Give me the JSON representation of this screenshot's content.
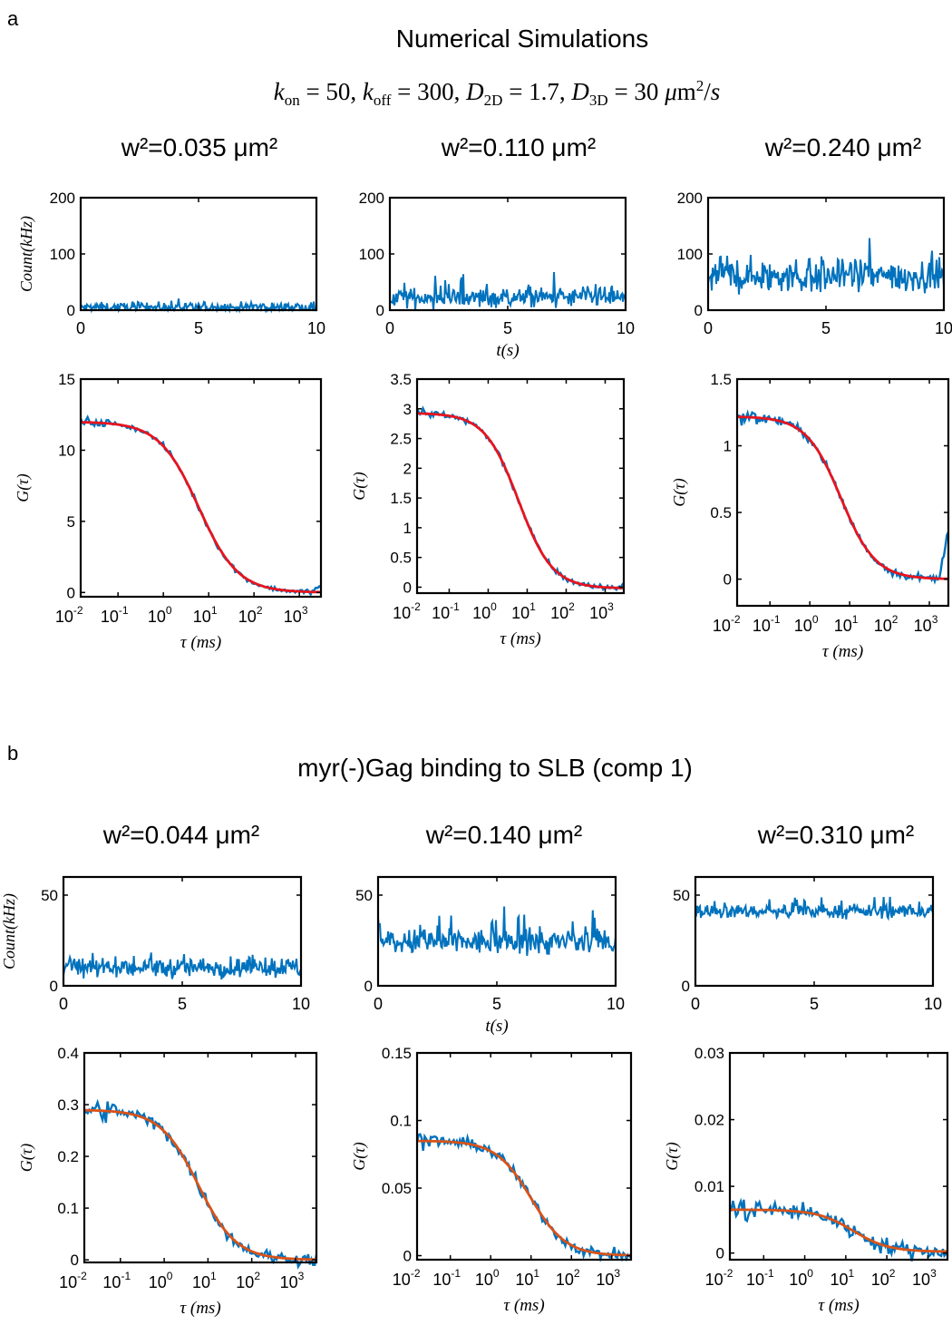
{
  "panel_a": {
    "letter": "a",
    "title": "Numerical Simulations",
    "params_text": "k_on = 50, k_off = 300, D_2D = 1.7, D_3D = 30 μm²/s",
    "w_labels": [
      "w²=0.035 μm²",
      "w²=0.110 μm²",
      "w²=0.240 μm²"
    ]
  },
  "panel_b": {
    "letter": "b",
    "title": "myr(-)Gag binding to SLB (comp 1)",
    "w_labels": [
      "w²=0.044 μm²",
      "w²=0.140 μm²",
      "w²=0.310 μm²"
    ]
  },
  "axis_labels": {
    "count_y": "Count(kHz)",
    "time_x": "t(s)",
    "g_y": "G(τ)",
    "tau_x": "τ (ms)"
  },
  "colors": {
    "data": "#0072BD",
    "fit_a": "#E8141E",
    "fit_b": "#D95319",
    "axis": "#000000"
  },
  "chart_data": [
    {
      "id": "a-count-1",
      "type": "line",
      "xlim": [
        0,
        10
      ],
      "ylim": [
        0,
        200
      ],
      "xticks": [
        0,
        5,
        10
      ],
      "yticks": [
        0,
        100,
        200
      ],
      "xlabel": "",
      "ylabel": "Count(kHz)",
      "mean": 5,
      "noise": 6,
      "spikes": 8
    },
    {
      "id": "a-count-2",
      "type": "line",
      "xlim": [
        0,
        10
      ],
      "ylim": [
        0,
        200
      ],
      "xticks": [
        0,
        5,
        10
      ],
      "yticks": [
        0,
        100,
        200
      ],
      "xlabel": "t(s)",
      "ylabel": "",
      "mean": 22,
      "noise": 12,
      "spikes": 30
    },
    {
      "id": "a-count-3",
      "type": "line",
      "xlim": [
        0,
        10
      ],
      "ylim": [
        0,
        200
      ],
      "xticks": [
        0,
        5,
        10
      ],
      "yticks": [
        0,
        100,
        200
      ],
      "xlabel": "",
      "ylabel": "",
      "mean": 60,
      "noise": 22,
      "spikes": 70
    },
    {
      "id": "a-g-1",
      "type": "line",
      "xscale": "log",
      "xlim": [
        0.015,
        3000
      ],
      "ylim": [
        -0.3,
        15
      ],
      "xticks": [
        0.01,
        0.1,
        1,
        10,
        100,
        1000
      ],
      "xticklabels": [
        "-2",
        "-1",
        "0",
        "1",
        "2",
        "3"
      ],
      "yticks": [
        0,
        5,
        10,
        15
      ],
      "xlabel": "τ (ms)",
      "ylabel": "G(τ)",
      "fit": {
        "G0": 12,
        "tau_d": 6,
        "offset": 0
      },
      "noise": 0.18,
      "tail_up": 0.4
    },
    {
      "id": "a-g-2",
      "type": "line",
      "xscale": "log",
      "xlim": [
        0.015,
        3000
      ],
      "ylim": [
        -0.1,
        3.5
      ],
      "xticks": [
        0.01,
        0.1,
        1,
        10,
        100,
        1000
      ],
      "xticklabels": [
        "-2",
        "-1",
        "0",
        "1",
        "2",
        "3"
      ],
      "yticks": [
        0,
        0.5,
        1,
        1.5,
        2,
        2.5,
        3,
        3.5
      ],
      "xlabel": "τ (ms)",
      "ylabel": "G(τ)",
      "fit": {
        "G0": 2.95,
        "tau_d": 6,
        "offset": -0.02
      },
      "noise": 0.05,
      "tail_up": 0.05
    },
    {
      "id": "a-g-3",
      "type": "line",
      "xscale": "log",
      "xlim": [
        0.015,
        3000
      ],
      "ylim": [
        -0.2,
        1.5
      ],
      "xticks": [
        0.01,
        0.1,
        1,
        10,
        100,
        1000
      ],
      "xticklabels": [
        "-2",
        "-1",
        "0",
        "1",
        "2",
        "3"
      ],
      "yticks": [
        0,
        0.5,
        1,
        1.5
      ],
      "xlabel": "τ (ms)",
      "ylabel": "G(τ)",
      "fit": {
        "G0": 1.22,
        "tau_d": 6,
        "offset": 0
      },
      "noise": 0.03,
      "tail_up": 0.38
    },
    {
      "id": "b-count-1",
      "type": "line",
      "xlim": [
        0,
        10
      ],
      "ylim": [
        0,
        60
      ],
      "xticks": [
        0,
        5,
        10
      ],
      "yticks": [
        0,
        50
      ],
      "xlabel": "",
      "ylabel": "Count(kHz)",
      "mean": 10,
      "noise": 4,
      "spikes": 8
    },
    {
      "id": "b-count-2",
      "type": "line",
      "xlim": [
        0,
        10
      ],
      "ylim": [
        0,
        60
      ],
      "xticks": [
        0,
        5,
        10
      ],
      "yticks": [
        0,
        50
      ],
      "xlabel": "t(s)",
      "ylabel": "",
      "mean": 24,
      "noise": 5,
      "spikes": 16
    },
    {
      "id": "b-count-3",
      "type": "line",
      "xlim": [
        0,
        10
      ],
      "ylim": [
        0,
        60
      ],
      "xticks": [
        0,
        5,
        10
      ],
      "yticks": [
        0,
        50
      ],
      "xlabel": "",
      "ylabel": "",
      "mean": 41,
      "noise": 2.5,
      "spikes": 8
    },
    {
      "id": "b-g-1",
      "type": "line",
      "xscale": "log",
      "xlim": [
        0.015,
        3000
      ],
      "ylim": [
        -0.005,
        0.4
      ],
      "xticks": [
        0.01,
        0.1,
        1,
        10,
        100,
        1000
      ],
      "xticklabels": [
        "-2",
        "-1",
        "0",
        "1",
        "2",
        "3"
      ],
      "yticks": [
        0,
        0.1,
        0.2,
        0.3,
        0.4
      ],
      "xlabel": "τ (ms)",
      "ylabel": "G(τ)",
      "fit": {
        "G0": 0.29,
        "tau_d": 6,
        "offset": 0
      },
      "noise": 0.012,
      "tail_up": 0
    },
    {
      "id": "b-g-2",
      "type": "line",
      "xscale": "log",
      "xlim": [
        0.015,
        3000
      ],
      "ylim": [
        -0.003,
        0.15
      ],
      "xticks": [
        0.01,
        0.1,
        1,
        10,
        100,
        1000
      ],
      "xticklabels": [
        "-2",
        "-1",
        "0",
        "1",
        "2",
        "3"
      ],
      "yticks": [
        0,
        0.05,
        0.1,
        0.15
      ],
      "xlabel": "τ (ms)",
      "ylabel": "G(τ)",
      "fit": {
        "G0": 0.085,
        "tau_d": 10,
        "offset": 0
      },
      "noise": 0.004,
      "tail_up": 0
    },
    {
      "id": "b-g-3",
      "type": "line",
      "xscale": "log",
      "xlim": [
        0.015,
        3000
      ],
      "ylim": [
        -0.001,
        0.03
      ],
      "xticks": [
        0.01,
        0.1,
        1,
        10,
        100,
        1000
      ],
      "xticklabels": [
        "-2",
        "-1",
        "0",
        "1",
        "2",
        "3"
      ],
      "yticks": [
        0,
        0.01,
        0.02,
        0.03
      ],
      "xlabel": "τ (ms)",
      "ylabel": "G(τ)",
      "fit": {
        "G0": 0.0063,
        "tau_d": 15,
        "offset": 0.0002
      },
      "noise": 0.0012,
      "tail_up": 0
    }
  ]
}
